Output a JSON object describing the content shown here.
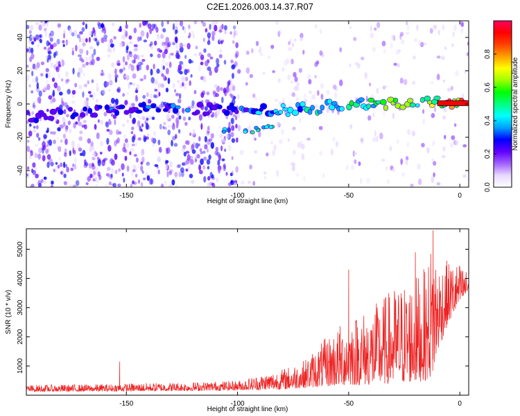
{
  "title": "C2E1.2026.003.14.37.R07",
  "chart_data": [
    {
      "type": "heatmap",
      "xlabel": "Height of straight line (km)",
      "ylabel": "Frequency (Hz)",
      "xlim": [
        -195,
        4
      ],
      "ylim": [
        -50,
        50
      ],
      "x_ticks": [
        -150,
        -100,
        -50,
        0
      ],
      "y_ticks": [
        -40,
        -20,
        0,
        20,
        40
      ],
      "colorbar": {
        "label": "Normalized spectral amplitude",
        "range": [
          0,
          1
        ],
        "ticks": [
          0.0,
          0.2,
          0.4,
          0.6,
          0.8
        ],
        "colors": [
          "#ffffff",
          "#e8d8ff",
          "#a060ff",
          "#6000ff",
          "#0000ff",
          "#00a0ff",
          "#00ffff",
          "#00ff80",
          "#00ff00",
          "#a0ff00",
          "#ffff00",
          "#ffa000",
          "#ff4000",
          "#ff0000",
          "#ff0060"
        ]
      },
      "ridge": {
        "x": [
          -195,
          -180,
          -160,
          -140,
          -120,
          -100,
          -85,
          -70,
          -55,
          -40,
          -25,
          -15,
          -10,
          0,
          4
        ],
        "y": [
          -8,
          -5,
          -4,
          -2,
          -3,
          -3,
          -4,
          -3,
          -1,
          0,
          1,
          2,
          1,
          0.5,
          0.5
        ],
        "peak_amplitude": [
          0.25,
          0.3,
          0.3,
          0.35,
          0.3,
          0.3,
          0.4,
          0.45,
          0.5,
          0.55,
          0.6,
          0.55,
          0.8,
          0.9,
          0.9
        ]
      },
      "secondary_band": {
        "x": [
          -105,
          -95,
          -90,
          -85
        ],
        "y": [
          -16,
          -16,
          -15,
          -14
        ]
      },
      "background_noise": {
        "dense_region_x": [
          -195,
          -100
        ],
        "sparse_region_x": [
          -100,
          4
        ]
      }
    },
    {
      "type": "line",
      "xlabel": "Height of straight line (km)",
      "ylabel": "SNR (10 * v/v)",
      "xlim": [
        -195,
        4
      ],
      "ylim": [
        0,
        5700
      ],
      "x_ticks": [
        -150,
        -100,
        -50,
        0
      ],
      "y_ticks": [
        1000,
        2000,
        3000,
        4000,
        5000
      ],
      "series": [
        {
          "color": "#ee2222",
          "envelope_x": [
            -195,
            -160,
            -140,
            -120,
            -100,
            -90,
            -80,
            -70,
            -60,
            -50,
            -40,
            -30,
            -20,
            -15,
            -12,
            -10,
            -5,
            0,
            4
          ],
          "envelope_max": [
            350,
            380,
            420,
            450,
            500,
            700,
            900,
            1200,
            2000,
            2700,
            3000,
            3700,
            4100,
            4400,
            5600,
            4700,
            4600,
            4500,
            4200
          ],
          "envelope_min": [
            120,
            130,
            140,
            150,
            170,
            180,
            200,
            250,
            300,
            350,
            350,
            400,
            450,
            500,
            700,
            1500,
            2500,
            3100,
            3500
          ],
          "spikes": [
            {
              "x": -153,
              "y": 1150
            },
            {
              "x": -50,
              "y": 4300
            },
            {
              "x": -12,
              "y": 5650
            },
            {
              "x": -20,
              "y": 4900
            }
          ]
        }
      ]
    }
  ]
}
